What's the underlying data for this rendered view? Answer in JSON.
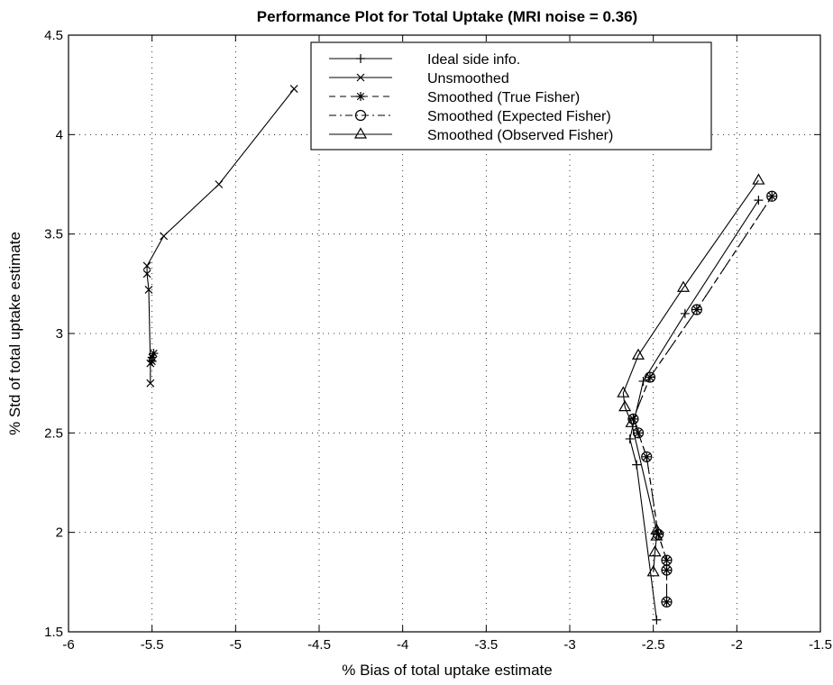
{
  "chart_data": {
    "type": "line",
    "title": "Performance Plot for Total Uptake   (MRI noise =  0.36)",
    "xlabel": "% Bias of total uptake estimate",
    "ylabel": "% Std of total uptake estimate",
    "xlim": [
      -6,
      -1.5
    ],
    "ylim": [
      1.5,
      4.5
    ],
    "xticks": [
      -6,
      -5.5,
      -5,
      -4.5,
      -4,
      -3.5,
      -3,
      -2.5,
      -2,
      -1.5
    ],
    "yticks": [
      1.5,
      2,
      2.5,
      3,
      3.5,
      4,
      4.5
    ],
    "xtick_labels": [
      "-6",
      "-5.5",
      "-5",
      "-4.5",
      "-4",
      "-3.5",
      "-3",
      "-2.5",
      "-2",
      "-1.5"
    ],
    "ytick_labels": [
      "1.5",
      "2",
      "2.5",
      "3",
      "3.5",
      "4",
      "4.5"
    ],
    "grid": true,
    "legend_position": "top-center",
    "series": [
      {
        "name": "Ideal side info.",
        "marker": "plus",
        "dash": "solid",
        "x": [
          -1.87,
          -2.31,
          -2.56,
          -2.64,
          -2.6,
          -2.48
        ],
        "y": [
          3.67,
          3.1,
          2.76,
          2.47,
          2.34,
          1.56
        ]
      },
      {
        "name": "Unsmoothed",
        "marker": "x",
        "dash": "solid",
        "x": [
          -4.65,
          -5.1,
          -5.43,
          -5.53,
          -5.53,
          -5.52,
          -5.51,
          -5.51
        ],
        "y": [
          4.23,
          3.75,
          3.49,
          3.34,
          3.3,
          3.22,
          2.85,
          2.75
        ]
      },
      {
        "name": "Smoothed (True Fisher)",
        "marker": "star",
        "dash": "dashed",
        "x": [
          -1.79,
          -2.24,
          -2.52,
          -2.62,
          -2.59,
          -2.54,
          -2.47,
          -2.42,
          -2.42,
          -2.42
        ],
        "y": [
          3.69,
          3.12,
          2.78,
          2.57,
          2.5,
          2.38,
          1.99,
          1.86,
          1.81,
          1.65
        ]
      },
      {
        "name": "Smoothed (Expected Fisher)",
        "marker": "circle",
        "dash": "dashdot",
        "x": [
          -1.79,
          -2.24,
          -2.52,
          -2.62,
          -2.59,
          -2.54,
          -2.47,
          -2.42,
          -2.42,
          -2.42
        ],
        "y": [
          3.69,
          3.12,
          2.78,
          2.57,
          2.5,
          2.38,
          1.99,
          1.86,
          1.81,
          1.65
        ]
      },
      {
        "name": "Smoothed (Observed Fisher)",
        "marker": "triangle",
        "dash": "solid",
        "x": [
          -1.87,
          -2.32,
          -2.59,
          -2.68,
          -2.67,
          -2.63,
          -2.48,
          -2.48,
          -2.49,
          -2.5
        ],
        "y": [
          3.77,
          3.23,
          2.89,
          2.7,
          2.63,
          2.55,
          2.01,
          1.98,
          1.9,
          1.8
        ]
      },
      {
        "name": "",
        "marker": "star",
        "dash": "dashed",
        "x": [
          -5.5,
          -5.5,
          -5.49
        ],
        "y": [
          2.86,
          2.88,
          2.9
        ]
      }
    ]
  }
}
